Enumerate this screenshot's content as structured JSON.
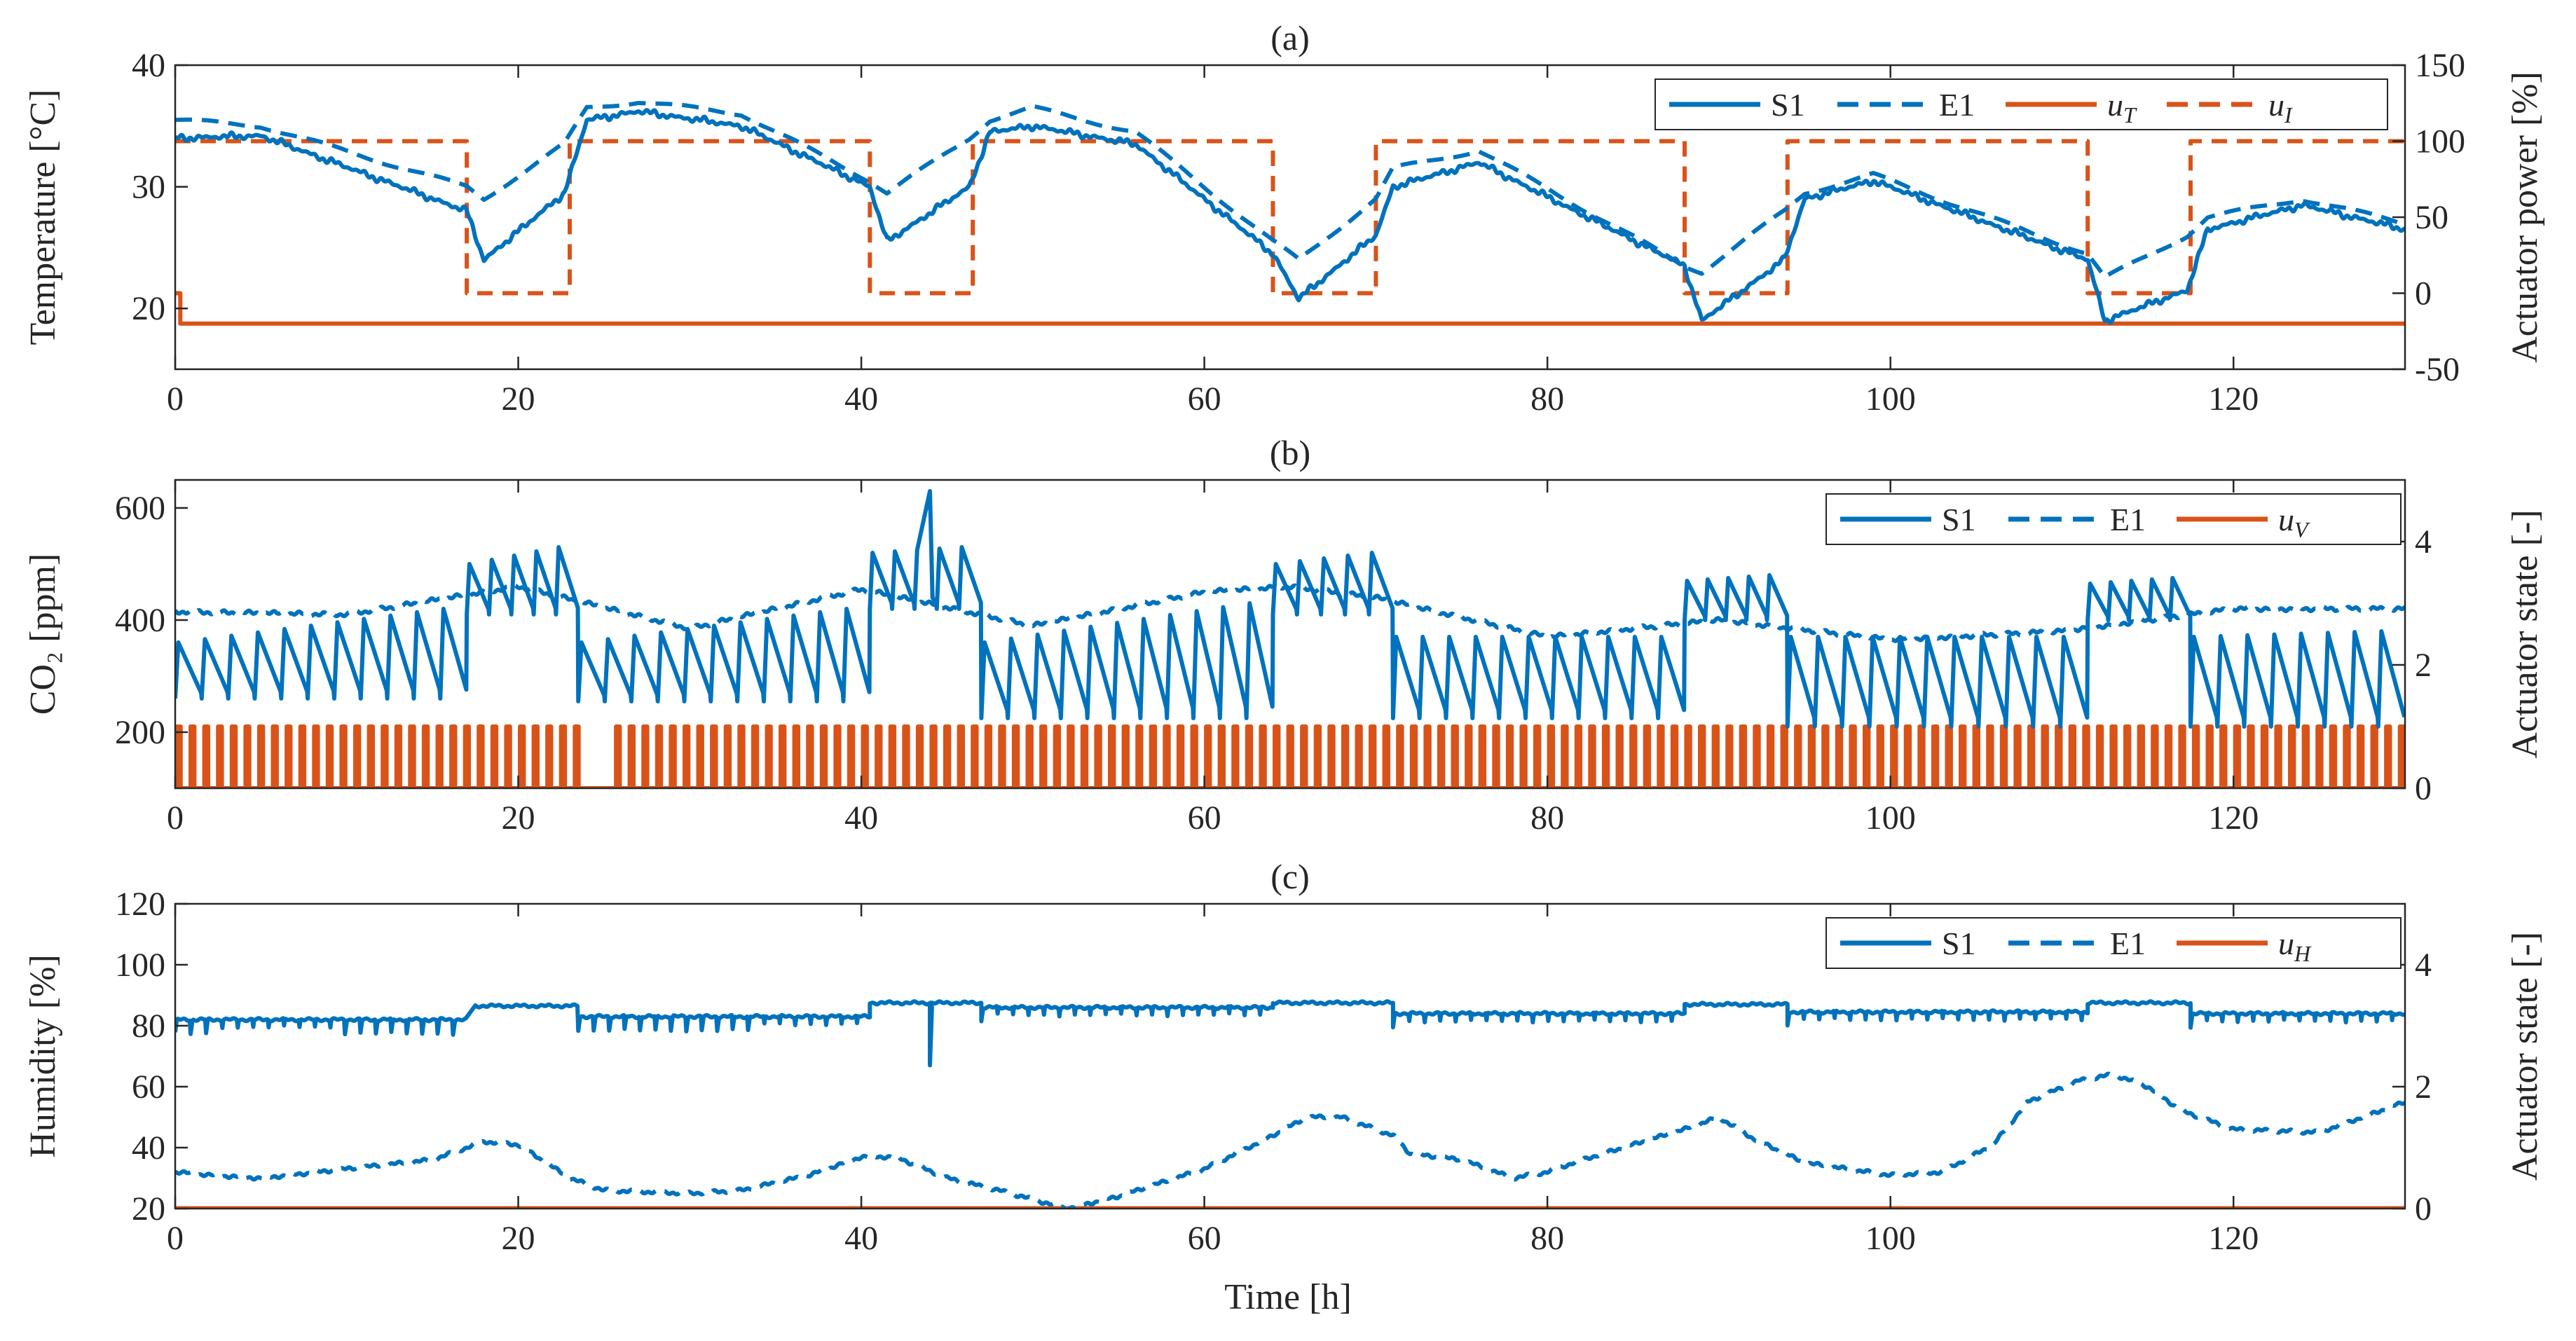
{
  "colors": {
    "blue": "#0072BD",
    "orange": "#D95319",
    "axis": "#262626"
  },
  "figure": {
    "xlabel": "Time [h]",
    "xlim": [
      0,
      130
    ],
    "xticks": [
      "0",
      "20",
      "40",
      "60",
      "80",
      "100",
      "120"
    ]
  },
  "chart_data": [
    {
      "type": "line",
      "title": "(a)",
      "ylabel_left": "Temperature [°C]",
      "ylabel_right": "Actuator power [%]",
      "ylim_left": [
        15,
        40
      ],
      "ylim_right": [
        -50,
        150
      ],
      "yticks_left": [
        "20",
        "30",
        "40"
      ],
      "yticks_right": [
        "-50",
        "0",
        "50",
        "100",
        "150"
      ],
      "legend": [
        {
          "label": "S1",
          "style": "solid",
          "color": "blue"
        },
        {
          "label": "E1",
          "style": "dashed",
          "color": "blue"
        },
        {
          "label": "u",
          "sub": "T",
          "style": "solid",
          "color": "orange"
        },
        {
          "label": "u",
          "sub": "I",
          "style": "dashed",
          "color": "orange"
        }
      ],
      "series": {
        "S1": {
          "axis": "left",
          "kind": "temp_sensor"
        },
        "E1": {
          "axis": "left",
          "kind": "temp_external"
        },
        "uT": {
          "axis": "right",
          "kind": "constant_after_start",
          "start_value": 0,
          "value": -20
        },
        "uI": {
          "axis": "right",
          "kind": "square",
          "high": 100,
          "low": 0
        }
      },
      "breakpoints": [
        {
          "t": 0,
          "S1": 34.0,
          "E1": 35.5
        },
        {
          "t": 5,
          "S1": 34.2,
          "E1": 35.0
        },
        {
          "t": 17,
          "S1": 28.0,
          "E1": 30.0
        },
        {
          "t": 18,
          "S1": 24.0,
          "E1": 29.0
        },
        {
          "t": 22.7,
          "S1": 29.5,
          "E1": 33.5
        },
        {
          "t": 24,
          "S1": 35.5,
          "E1": 36.5
        },
        {
          "t": 27,
          "S1": 36.2,
          "E1": 37.0
        },
        {
          "t": 33,
          "S1": 35.0,
          "E1": 36.0
        },
        {
          "t": 40.5,
          "S1": 30.0,
          "E1": 30.5
        },
        {
          "t": 41.5,
          "S1": 25.5,
          "E1": 29.5
        },
        {
          "t": 46.3,
          "S1": 30.0,
          "E1": 34.0
        },
        {
          "t": 47.5,
          "S1": 34.5,
          "E1": 35.5
        },
        {
          "t": 50,
          "S1": 35.0,
          "E1": 36.5
        },
        {
          "t": 56,
          "S1": 33.5,
          "E1": 34.5
        },
        {
          "t": 64,
          "S1": 24.5,
          "E1": 25.5
        },
        {
          "t": 65.5,
          "S1": 20.8,
          "E1": 24.0
        },
        {
          "t": 70,
          "S1": 26.0,
          "E1": 29.0
        },
        {
          "t": 71,
          "S1": 30.0,
          "E1": 31.5
        },
        {
          "t": 76,
          "S1": 32.0,
          "E1": 33.0
        },
        {
          "t": 88,
          "S1": 23.5,
          "E1": 23.5
        },
        {
          "t": 89,
          "S1": 19.0,
          "E1": 23.0
        },
        {
          "t": 93.8,
          "S1": 24.0,
          "E1": 28.0
        },
        {
          "t": 95,
          "S1": 29.0,
          "E1": 29.5
        },
        {
          "t": 99,
          "S1": 30.5,
          "E1": 31.0
        },
        {
          "t": 111.5,
          "S1": 24.0,
          "E1": 24.5
        },
        {
          "t": 112.5,
          "S1": 19.0,
          "E1": 22.5
        },
        {
          "t": 117.3,
          "S1": 21.5,
          "E1": 26.0
        },
        {
          "t": 118.5,
          "S1": 26.5,
          "E1": 27.5
        },
        {
          "t": 124,
          "S1": 28.5,
          "E1": 29.0
        },
        {
          "t": 130,
          "S1": 26.5,
          "E1": 27.0
        }
      ],
      "uI_high_intervals": [
        [
          0,
          17
        ],
        [
          23,
          40.5
        ],
        [
          46.5,
          64
        ],
        [
          70,
          88
        ],
        [
          94,
          111.5
        ],
        [
          117.5,
          130
        ]
      ]
    },
    {
      "type": "line",
      "title": "(b)",
      "ylabel_left": "CO₂ [ppm]",
      "ylabel_right": "Actuator state [-]",
      "ylim_left": [
        100,
        650
      ],
      "ylim_right": [
        0,
        5
      ],
      "yticks_left": [
        "200",
        "400",
        "600"
      ],
      "yticks_right": [
        "0",
        "2",
        "4"
      ],
      "legend": [
        {
          "label": "S1",
          "style": "solid",
          "color": "blue"
        },
        {
          "label": "E1",
          "style": "dashed",
          "color": "blue"
        },
        {
          "label": "u",
          "sub": "V",
          "style": "solid",
          "color": "orange"
        }
      ],
      "series": {
        "S1": {
          "axis": "left",
          "kind": "co2_sawtooth",
          "period_h": 1.6
        },
        "E1": {
          "axis": "left",
          "kind": "co2_external"
        },
        "uV": {
          "axis": "right",
          "kind": "pulse_train",
          "high": 1,
          "low": 0,
          "period_h": 0.8
        }
      },
      "S1_sawtooth_bands": [
        {
          "from": 0,
          "to": 17,
          "low": [
            260,
            260
          ],
          "high": [
            360,
            420
          ]
        },
        {
          "from": 17,
          "to": 23.5,
          "high_band": true,
          "low": [
            410,
            410
          ],
          "high": [
            500,
            530
          ]
        },
        {
          "from": 23.5,
          "to": 40.5,
          "low": [
            255,
            255
          ],
          "high": [
            360,
            420
          ]
        },
        {
          "from": 40.5,
          "to": 47,
          "high_band": true,
          "low": [
            420,
            420
          ],
          "high": [
            520,
            530
          ]
        },
        {
          "from": 47,
          "to": 64,
          "low": [
            225,
            225
          ],
          "high": [
            360,
            430
          ]
        },
        {
          "from": 64,
          "to": 71,
          "high_band": true,
          "low": [
            410,
            410
          ],
          "high": [
            500,
            520
          ]
        },
        {
          "from": 71,
          "to": 88,
          "low": [
            225,
            225
          ],
          "high": [
            370,
            370
          ]
        },
        {
          "from": 88,
          "to": 94,
          "high_band": true,
          "low": [
            400,
            400
          ],
          "high": [
            470,
            480
          ]
        },
        {
          "from": 94,
          "to": 111.5,
          "low": [
            210,
            210
          ],
          "high": [
            370,
            370
          ]
        },
        {
          "from": 111.5,
          "to": 117.5,
          "high_band": true,
          "low": [
            400,
            400
          ],
          "high": [
            465,
            475
          ]
        },
        {
          "from": 117.5,
          "to": 130,
          "low": [
            210,
            210
          ],
          "high": [
            370,
            380
          ]
        }
      ],
      "S1_spike": {
        "t": 44,
        "value": 630
      },
      "E1_points": [
        [
          0,
          415
        ],
        [
          10,
          410
        ],
        [
          20,
          460
        ],
        [
          30,
          385
        ],
        [
          40,
          455
        ],
        [
          50,
          390
        ],
        [
          60,
          450
        ],
        [
          65,
          460
        ],
        [
          70,
          440
        ],
        [
          80,
          370
        ],
        [
          90,
          400
        ],
        [
          100,
          365
        ],
        [
          110,
          380
        ],
        [
          120,
          420
        ],
        [
          130,
          420
        ]
      ],
      "uV_gaps": [
        [
          23.6,
          25.6
        ]
      ]
    },
    {
      "type": "line",
      "title": "(c)",
      "ylabel_left": "Humidity [%]",
      "ylabel_right": "Actuator state [-]",
      "ylim_left": [
        20,
        120
      ],
      "ylim_right": [
        0,
        5
      ],
      "yticks_left": [
        "20",
        "40",
        "60",
        "80",
        "100",
        "120"
      ],
      "yticks_right": [
        "0",
        "2",
        "4"
      ],
      "legend": [
        {
          "label": "S1",
          "style": "solid",
          "color": "blue"
        },
        {
          "label": "E1",
          "style": "dashed",
          "color": "blue"
        },
        {
          "label": "u",
          "sub": "H",
          "style": "solid",
          "color": "orange"
        }
      ],
      "series": {
        "S1": {
          "axis": "left",
          "kind": "humidity_sensor"
        },
        "E1": {
          "axis": "left",
          "kind": "humidity_external"
        },
        "uH": {
          "axis": "right",
          "kind": "constant",
          "value": 0
        }
      },
      "S1_levels": [
        {
          "from": 0,
          "to": 17,
          "base": 82,
          "dips": true
        },
        {
          "from": 17.5,
          "to": 23.5,
          "base": 86.5,
          "dips": false
        },
        {
          "from": 23.5,
          "to": 40.5,
          "base": 83,
          "dips": true
        },
        {
          "from": 40.5,
          "to": 47,
          "base": 87.5,
          "dips": false
        },
        {
          "from": 47,
          "to": 64,
          "base": 86,
          "dips": true
        },
        {
          "from": 64,
          "to": 71,
          "base": 87.5,
          "dips": false
        },
        {
          "from": 71,
          "to": 88,
          "base": 84,
          "dips": true
        },
        {
          "from": 88,
          "to": 94,
          "base": 87,
          "dips": false
        },
        {
          "from": 94,
          "to": 111.5,
          "base": 84.5,
          "dips": true
        },
        {
          "from": 111.5,
          "to": 117.5,
          "base": 87.5,
          "dips": false
        },
        {
          "from": 117.5,
          "to": 130,
          "base": 84,
          "dips": true
        }
      ],
      "S1_spike": {
        "t": 44,
        "value": 67
      },
      "E1_points": [
        [
          0,
          32
        ],
        [
          2,
          31
        ],
        [
          5,
          30
        ],
        [
          10,
          33
        ],
        [
          15,
          36
        ],
        [
          18,
          42
        ],
        [
          20,
          41
        ],
        [
          23,
          30
        ],
        [
          25,
          26
        ],
        [
          30,
          25
        ],
        [
          33,
          26
        ],
        [
          37,
          31
        ],
        [
          40,
          37
        ],
        [
          42,
          37
        ],
        [
          45,
          30
        ],
        [
          48,
          26
        ],
        [
          52,
          20
        ],
        [
          55,
          24
        ],
        [
          60,
          33
        ],
        [
          64,
          44
        ],
        [
          66,
          50
        ],
        [
          68,
          50
        ],
        [
          71,
          44
        ],
        [
          72,
          38
        ],
        [
          75,
          36
        ],
        [
          78,
          30
        ],
        [
          80,
          32
        ],
        [
          82,
          36
        ],
        [
          85,
          41
        ],
        [
          88,
          46
        ],
        [
          90,
          50
        ],
        [
          92,
          43
        ],
        [
          95,
          35
        ],
        [
          100,
          31
        ],
        [
          103,
          32
        ],
        [
          106,
          41
        ],
        [
          108,
          55
        ],
        [
          111,
          62
        ],
        [
          113,
          64
        ],
        [
          115,
          60
        ],
        [
          117,
          52
        ],
        [
          120,
          46
        ],
        [
          125,
          45
        ],
        [
          130,
          55
        ]
      ]
    }
  ]
}
